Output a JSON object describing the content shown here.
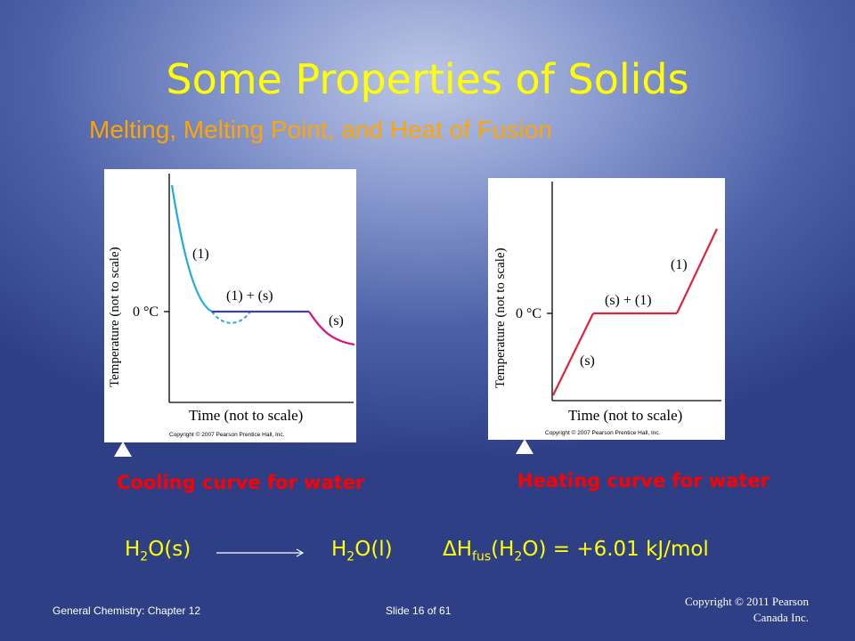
{
  "slide": {
    "title": "Some Properties of Solids",
    "subtitle": "Melting, Melting Point, and Heat of Fusion"
  },
  "cooling": {
    "caption": "Cooling curve for water",
    "ylabel": "Temperature (not to scale)",
    "xlabel": "Time (not to scale)",
    "tick": "0 °C",
    "phase_liquid": "(1)",
    "phase_mix": "(1) + (s)",
    "phase_solid": "(s)",
    "credit": "Copyright © 2007 Pearson Prentice Hall, Inc."
  },
  "heating": {
    "caption": "Heating curve for water",
    "ylabel": "Temperature (not to scale)",
    "xlabel": "Time (not to scale)",
    "tick": "0 °C",
    "phase_solid": "(s)",
    "phase_mix": "(s) + (1)",
    "phase_liquid": "(1)",
    "credit": "Copyright © 2007 Pearson Prentice Hall, Inc."
  },
  "equation": {
    "left_h": "H",
    "left_sub": "2",
    "left_rest": "O(s)",
    "right_h": "H",
    "right_sub": "2",
    "right_rest": "O(l)",
    "dh_symbol": "ΔH",
    "dh_sub": "fus",
    "dh_paren": "(H",
    "dh_sub2": "2",
    "dh_rest": "O) = +6.01 kJ/mol"
  },
  "footer": {
    "left": "General Chemistry: Chapter 12",
    "middle": "Slide 16 of 61",
    "copyright_line1": "Copyright © 2011 Pearson",
    "copyright_line2": "Canada Inc."
  },
  "colors": {
    "title": "#ffff00",
    "subtitle": "#ffa500",
    "caption": "#ff0000",
    "liquid_curve": "#22a9e0",
    "mix_curve": "#3b3faf",
    "solid_curve": "#d4147a",
    "heating_curve": "#d8263e"
  }
}
